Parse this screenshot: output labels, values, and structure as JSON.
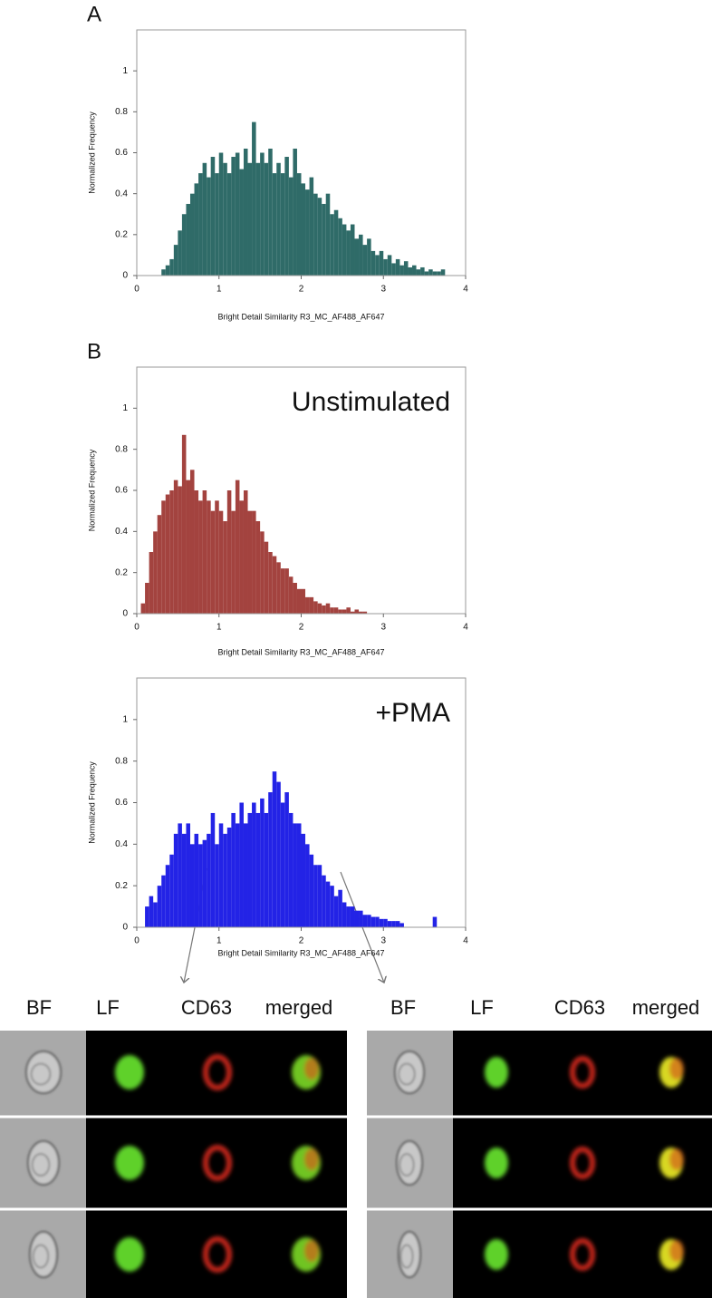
{
  "chart_data": [
    {
      "type": "histogram",
      "panel": "A",
      "xlabel": "Bright Detail Similarity R3_MC_AF488_AF647",
      "ylabel": "Normalized Frequency",
      "color": "#2f6b68",
      "xlim": [
        0,
        4
      ],
      "ylim": [
        0,
        1.2
      ],
      "xticks": [
        0,
        1,
        2,
        3,
        4
      ],
      "yticks": [
        0,
        0.2,
        0.4,
        0.6,
        0.8,
        1
      ],
      "bins": [
        0,
        0.05,
        0.1,
        0.15,
        0.2,
        0.25,
        0.3,
        0.35,
        0.4,
        0.45,
        0.5,
        0.55,
        0.6,
        0.65,
        0.7,
        0.75,
        0.8,
        0.85,
        0.9,
        0.95,
        1,
        1.05,
        1.1,
        1.15,
        1.2,
        1.25,
        1.3,
        1.35,
        1.4,
        1.45,
        1.5,
        1.55,
        1.6,
        1.65,
        1.7,
        1.75,
        1.8,
        1.85,
        1.9,
        1.95,
        2,
        2.05,
        2.1,
        2.15,
        2.2,
        2.25,
        2.3,
        2.35,
        2.4,
        2.45,
        2.5,
        2.55,
        2.6,
        2.65,
        2.7,
        2.75,
        2.8,
        2.85,
        2.9,
        2.95,
        3,
        3.05,
        3.1,
        3.15,
        3.2,
        3.25,
        3.3,
        3.35,
        3.4,
        3.45,
        3.5,
        3.55,
        3.6,
        3.65,
        3.7,
        3.75,
        3.8,
        3.85,
        3.9,
        3.95,
        4
      ],
      "values": [
        0,
        0,
        0,
        0,
        0,
        0,
        0.03,
        0.05,
        0.08,
        0.15,
        0.22,
        0.3,
        0.35,
        0.4,
        0.45,
        0.5,
        0.55,
        0.48,
        0.58,
        0.5,
        0.6,
        0.55,
        0.5,
        0.58,
        0.6,
        0.52,
        0.62,
        0.55,
        0.75,
        0.55,
        0.6,
        0.55,
        0.62,
        0.5,
        0.55,
        0.5,
        0.58,
        0.48,
        0.62,
        0.5,
        0.45,
        0.42,
        0.48,
        0.4,
        0.38,
        0.35,
        0.4,
        0.3,
        0.32,
        0.28,
        0.25,
        0.22,
        0.25,
        0.18,
        0.2,
        0.15,
        0.18,
        0.12,
        0.1,
        0.12,
        0.08,
        0.1,
        0.06,
        0.08,
        0.05,
        0.07,
        0.04,
        0.05,
        0.03,
        0.04,
        0.02,
        0.03,
        0.02,
        0.02,
        0.03,
        0,
        0,
        0,
        0,
        0
      ]
    },
    {
      "type": "histogram",
      "panel": "B",
      "annotation": "Unstimulated",
      "xlabel": "Bright Detail Similarity R3_MC_AF488_AF647",
      "ylabel": "Normalized Frequency",
      "color": "#a3433f",
      "xlim": [
        0,
        4
      ],
      "ylim": [
        0,
        1.2
      ],
      "xticks": [
        0,
        1,
        2,
        3,
        4
      ],
      "yticks": [
        0,
        0.2,
        0.4,
        0.6,
        0.8,
        1
      ],
      "bins": [
        0,
        0.05,
        0.1,
        0.15,
        0.2,
        0.25,
        0.3,
        0.35,
        0.4,
        0.45,
        0.5,
        0.55,
        0.6,
        0.65,
        0.7,
        0.75,
        0.8,
        0.85,
        0.9,
        0.95,
        1,
        1.05,
        1.1,
        1.15,
        1.2,
        1.25,
        1.3,
        1.35,
        1.4,
        1.45,
        1.5,
        1.55,
        1.6,
        1.65,
        1.7,
        1.75,
        1.8,
        1.85,
        1.9,
        1.95,
        2,
        2.05,
        2.1,
        2.15,
        2.2,
        2.25,
        2.3,
        2.35,
        2.4,
        2.45,
        2.5,
        2.55,
        2.6,
        2.65,
        2.7,
        2.75,
        2.8,
        2.85,
        2.9,
        2.95,
        3,
        3.05,
        3.1,
        3.15,
        3.2,
        3.25,
        3.3,
        3.35,
        3.4,
        3.45,
        3.5,
        3.55,
        3.6,
        3.65,
        3.7,
        3.75,
        3.8,
        3.85,
        3.9,
        3.95,
        4
      ],
      "values": [
        0,
        0.05,
        0.15,
        0.3,
        0.4,
        0.48,
        0.55,
        0.58,
        0.6,
        0.65,
        0.62,
        0.87,
        0.65,
        0.7,
        0.6,
        0.55,
        0.6,
        0.55,
        0.5,
        0.55,
        0.5,
        0.45,
        0.6,
        0.5,
        0.65,
        0.55,
        0.6,
        0.5,
        0.5,
        0.45,
        0.4,
        0.35,
        0.3,
        0.28,
        0.25,
        0.22,
        0.22,
        0.18,
        0.15,
        0.12,
        0.12,
        0.08,
        0.08,
        0.06,
        0.05,
        0.04,
        0.05,
        0.03,
        0.03,
        0.02,
        0.02,
        0.03,
        0.01,
        0.02,
        0.01,
        0.01,
        0,
        0,
        0,
        0,
        0,
        0,
        0,
        0,
        0,
        0,
        0,
        0,
        0,
        0,
        0,
        0,
        0,
        0,
        0,
        0,
        0,
        0,
        0,
        0
      ]
    },
    {
      "type": "histogram",
      "annotation": "+PMA",
      "xlabel": "Bright Detail Similarity R3_MC_AF488_AF647",
      "ylabel": "Normalized Frequency",
      "color": "#2323e6",
      "xlim": [
        0,
        4
      ],
      "ylim": [
        0,
        1.2
      ],
      "xticks": [
        0,
        1,
        2,
        3,
        4
      ],
      "yticks": [
        0,
        0.2,
        0.4,
        0.6,
        0.8,
        1
      ],
      "bins": [
        0,
        0.05,
        0.1,
        0.15,
        0.2,
        0.25,
        0.3,
        0.35,
        0.4,
        0.45,
        0.5,
        0.55,
        0.6,
        0.65,
        0.7,
        0.75,
        0.8,
        0.85,
        0.9,
        0.95,
        1,
        1.05,
        1.1,
        1.15,
        1.2,
        1.25,
        1.3,
        1.35,
        1.4,
        1.45,
        1.5,
        1.55,
        1.6,
        1.65,
        1.7,
        1.75,
        1.8,
        1.85,
        1.9,
        1.95,
        2,
        2.05,
        2.1,
        2.15,
        2.2,
        2.25,
        2.3,
        2.35,
        2.4,
        2.45,
        2.5,
        2.55,
        2.6,
        2.65,
        2.7,
        2.75,
        2.8,
        2.85,
        2.9,
        2.95,
        3,
        3.05,
        3.1,
        3.15,
        3.2,
        3.25,
        3.3,
        3.35,
        3.4,
        3.45,
        3.5,
        3.55,
        3.6,
        3.65,
        3.7,
        3.75,
        3.8,
        3.85,
        3.9,
        3.95,
        4
      ],
      "values": [
        0,
        0,
        0.1,
        0.15,
        0.12,
        0.2,
        0.25,
        0.3,
        0.35,
        0.45,
        0.5,
        0.45,
        0.5,
        0.4,
        0.45,
        0.4,
        0.42,
        0.45,
        0.55,
        0.4,
        0.5,
        0.45,
        0.48,
        0.55,
        0.5,
        0.6,
        0.5,
        0.55,
        0.6,
        0.55,
        0.62,
        0.55,
        0.65,
        0.75,
        0.7,
        0.6,
        0.65,
        0.55,
        0.5,
        0.5,
        0.45,
        0.4,
        0.35,
        0.3,
        0.3,
        0.25,
        0.22,
        0.2,
        0.15,
        0.18,
        0.12,
        0.1,
        0.1,
        0.08,
        0.08,
        0.06,
        0.06,
        0.05,
        0.05,
        0.04,
        0.04,
        0.03,
        0.03,
        0.03,
        0.02,
        0,
        0,
        0,
        0,
        0,
        0,
        0,
        0.05,
        0,
        0,
        0,
        0,
        0,
        0,
        0
      ]
    }
  ],
  "image_panels": [
    {
      "columns": [
        "BF",
        "LF",
        "CD63",
        "merged"
      ]
    },
    {
      "columns": [
        "BF",
        "LF",
        "CD63",
        "merged"
      ]
    }
  ]
}
